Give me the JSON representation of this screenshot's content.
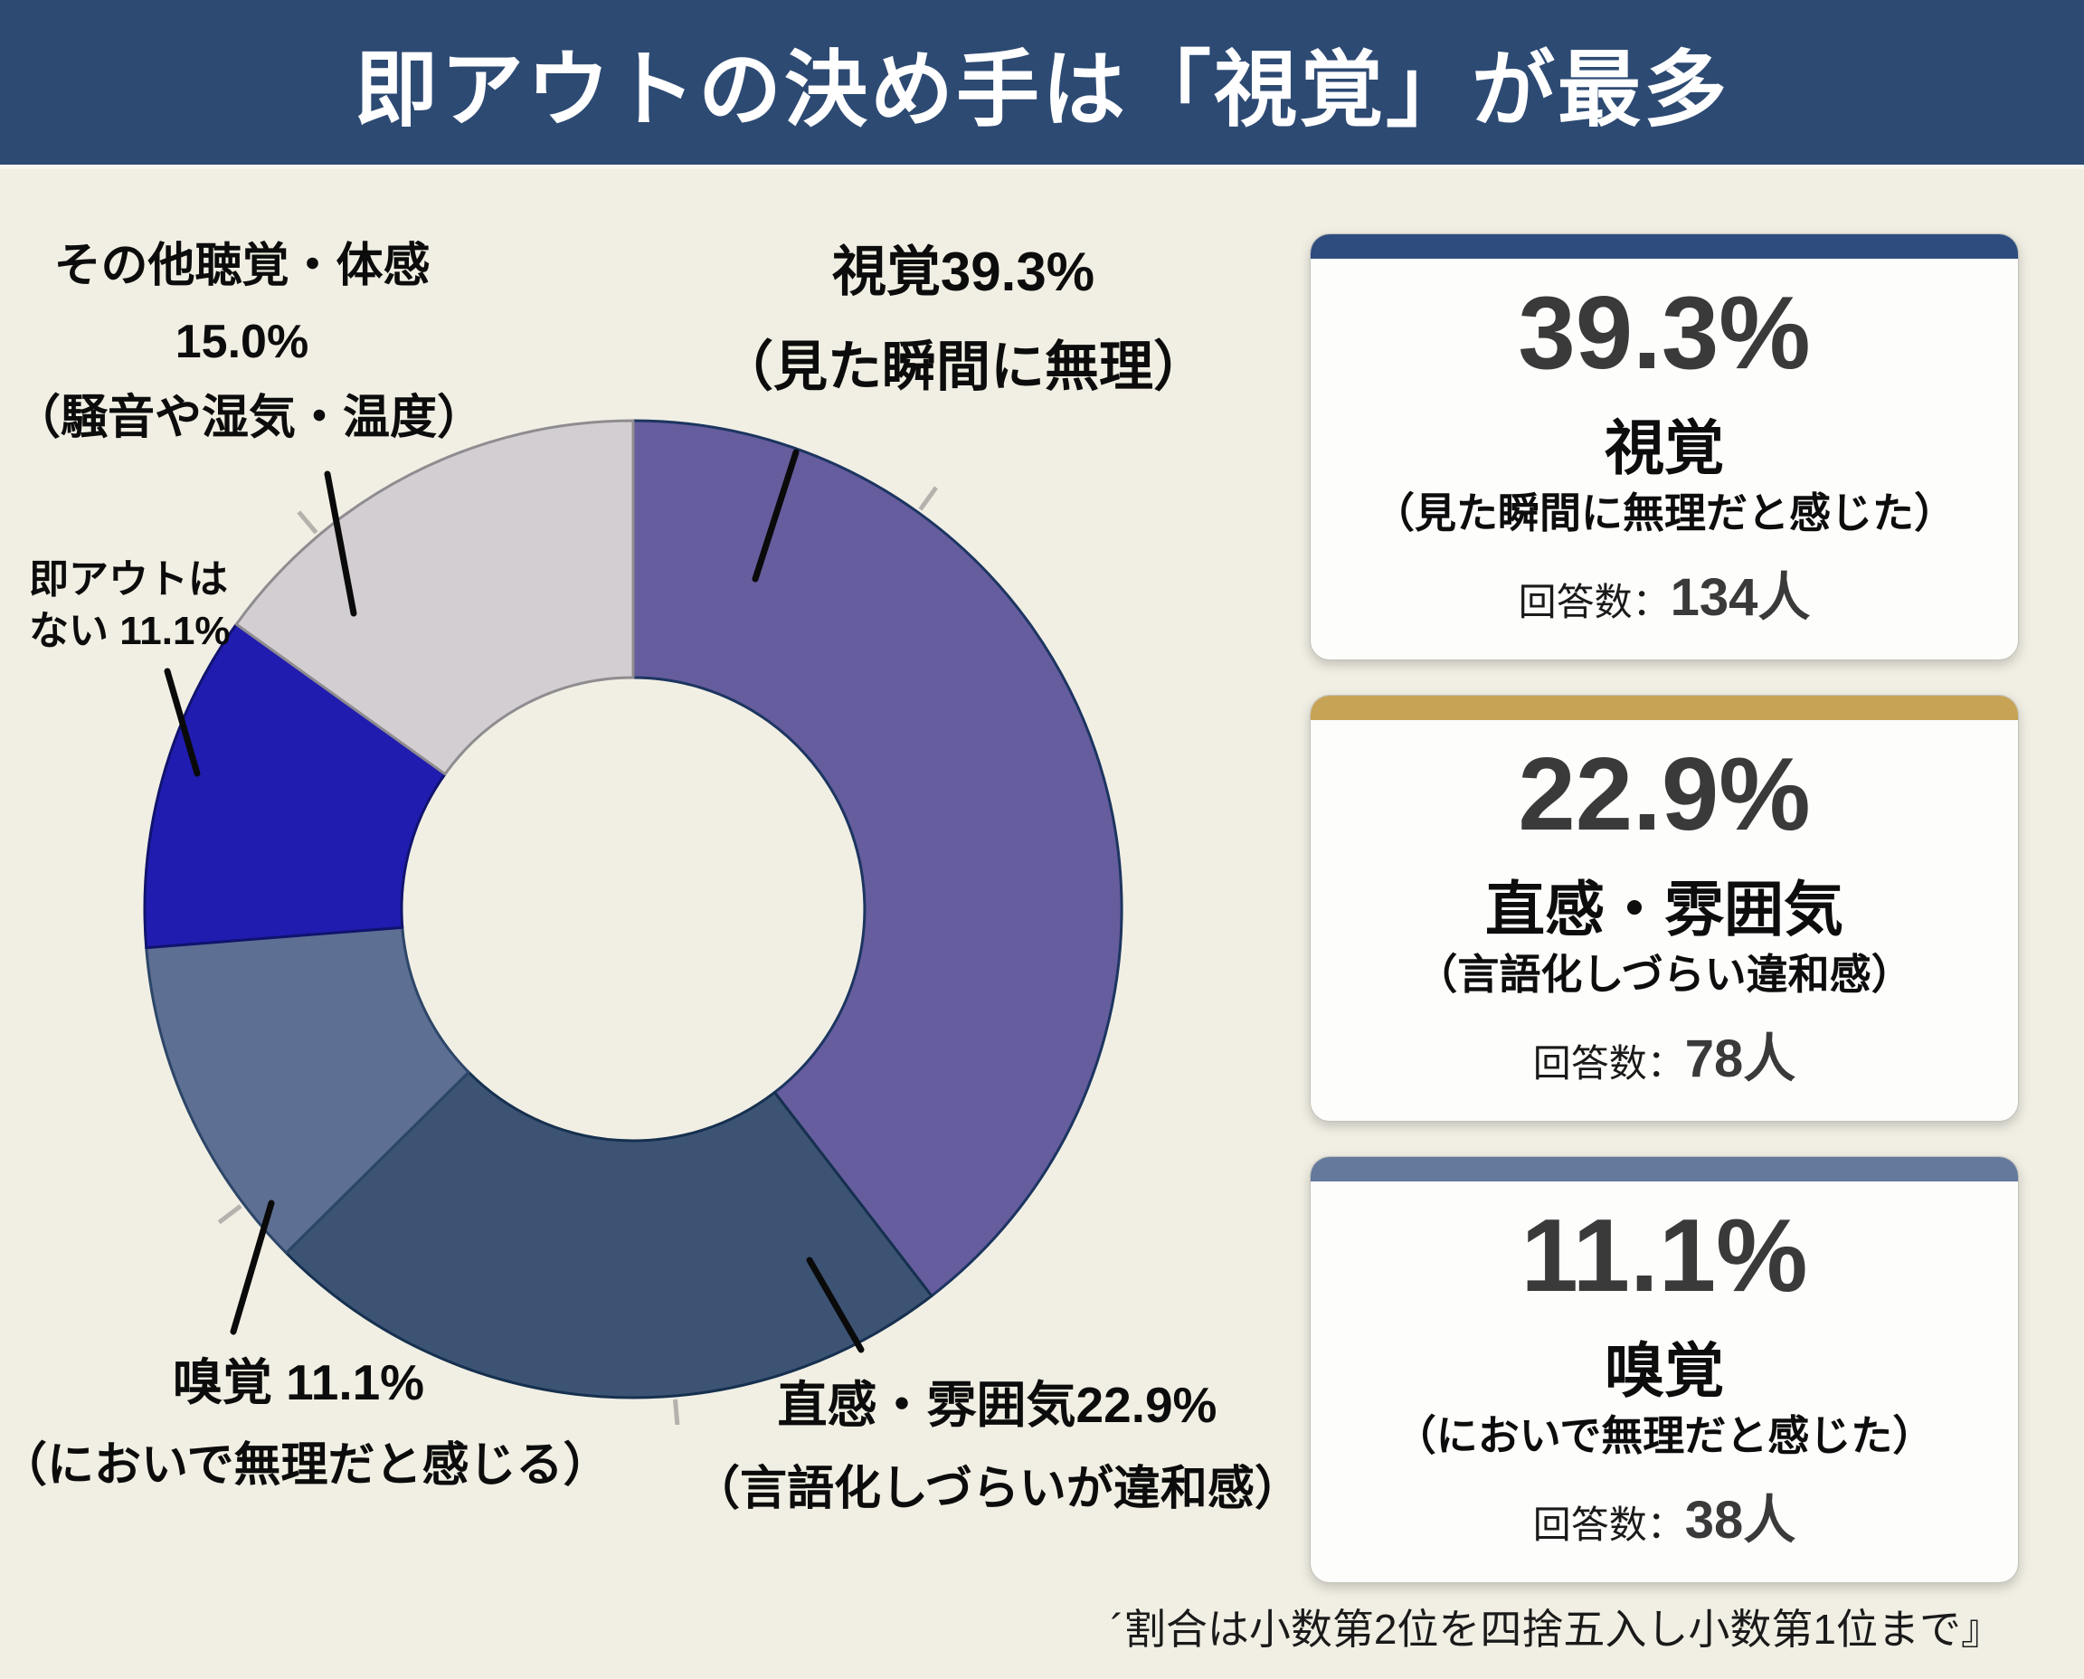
{
  "title": "即アウトの決め手は「視覚」が最多",
  "footer_note": "´割合は小数第2位を四捨五入し小数第1位まで』",
  "chart_data": {
    "type": "pie",
    "donut": true,
    "title": "即アウトの決め手",
    "categories": [
      "視覚",
      "直感・雰囲気",
      "嗅覚",
      "即アウトはない",
      "その他聴覚・体感"
    ],
    "values": [
      39.3,
      22.9,
      11.1,
      11.1,
      15.0
    ],
    "unit": "%",
    "direction": "clockwise",
    "start_angle_deg": 0,
    "colors": [
      "#655d9d",
      "#3d5374",
      "#5d6f93",
      "#211cb0",
      "#d3ced2"
    ],
    "stroke_colors": [
      "#1c3560",
      "#16304f",
      "#2c4668",
      "#10136e",
      "#8f8c90"
    ],
    "counts": [
      134,
      78,
      38,
      null,
      null
    ],
    "legend_position": "none",
    "grid": false
  },
  "donut_labels": [
    {
      "id": "shikaku",
      "lines": [
        "視覚39.3%",
        "（見た瞬間に無理）"
      ]
    },
    {
      "id": "sonota",
      "lines": [
        "その他聴覚・体感",
        "15.0%",
        "（騒音や湿気・温度）"
      ]
    },
    {
      "id": "sokuout",
      "lines": [
        "即アウトは",
        "ない 11.1%"
      ]
    },
    {
      "id": "kyukaku",
      "lines": [
        "嗅覚 11.1%",
        "（においで無理だと感じる）"
      ]
    },
    {
      "id": "chokkan",
      "lines": [
        "直感・雰囲気22.9%",
        "（言語化しづらいが違和感）"
      ]
    }
  ],
  "cards": [
    {
      "percent": "39.3%",
      "name": "視覚",
      "paren": "（見た瞬間に無理だと感じた）",
      "count_label": "回答数：",
      "count": "134人",
      "accent": "#2e4d7e"
    },
    {
      "percent": "22.9%",
      "name": "直感・雰囲気",
      "paren": "（言語化しづらい違和感）",
      "count_label": "回答数：",
      "count": "78人",
      "accent": "#c6a355"
    },
    {
      "percent": "11.1%",
      "name": "嗅覚",
      "paren": "（においで無理だと感じた）",
      "count_label": "回答数：",
      "count": "38人",
      "accent": "#64799c"
    }
  ],
  "theme": {
    "header_bg": "#2d4a73",
    "page_bg": "#f1efe4",
    "card_bg": "#fdfdfb",
    "percent_color": "#3a3a3a",
    "leader_line_color": "#0a0a0a",
    "tick_color": "#b5b2ad"
  }
}
